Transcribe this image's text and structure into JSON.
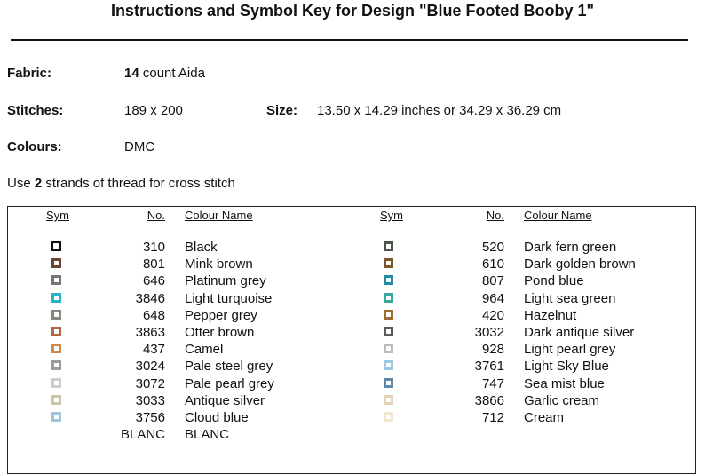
{
  "header": {
    "title": "Instructions and Symbol Key for Design \"Blue Footed Booby 1\""
  },
  "info": {
    "fabric_label": "Fabric:",
    "fabric_count": "14",
    "fabric_rest": "count Aida",
    "stitches_label": "Stitches:",
    "stitches_value": "189 x 200",
    "size_label": "Size:",
    "size_value": "13.50 x 14.29 inches or 34.29 x 36.29 cm",
    "colours_label": "Colours:",
    "colours_value": "DMC",
    "strands_pre": "Use",
    "strands_count": "2",
    "strands_post": "strands of thread for cross stitch"
  },
  "table": {
    "headers": [
      "Sym",
      "No.",
      "Colour Name"
    ],
    "left": [
      [
        310,
        "Black"
      ],
      [
        801,
        "Mink brown"
      ],
      [
        646,
        "Platinum grey"
      ],
      [
        3846,
        "Light turquoise"
      ],
      [
        648,
        "Pepper grey"
      ],
      [
        3863,
        "Otter brown"
      ],
      [
        437,
        "Camel"
      ],
      [
        3024,
        "Pale steel grey"
      ],
      [
        3072,
        "Pale pearl grey"
      ],
      [
        3033,
        "Antique silver"
      ],
      [
        3756,
        "Cloud blue"
      ],
      [
        "BLANC",
        "BLANC"
      ]
    ],
    "right": [
      [
        520,
        "Dark fern green"
      ],
      [
        610,
        "Dark golden brown"
      ],
      [
        807,
        "Pond blue"
      ],
      [
        964,
        "Light sea green"
      ],
      [
        420,
        "Hazelnut"
      ],
      [
        3032,
        "Dark antique silver"
      ],
      [
        928,
        "Light pearl grey"
      ],
      [
        3761,
        "Light Sky Blue"
      ],
      [
        747,
        "Sea mist blue"
      ],
      [
        3866,
        "Garlic cream"
      ],
      [
        712,
        "Cream"
      ]
    ]
  }
}
